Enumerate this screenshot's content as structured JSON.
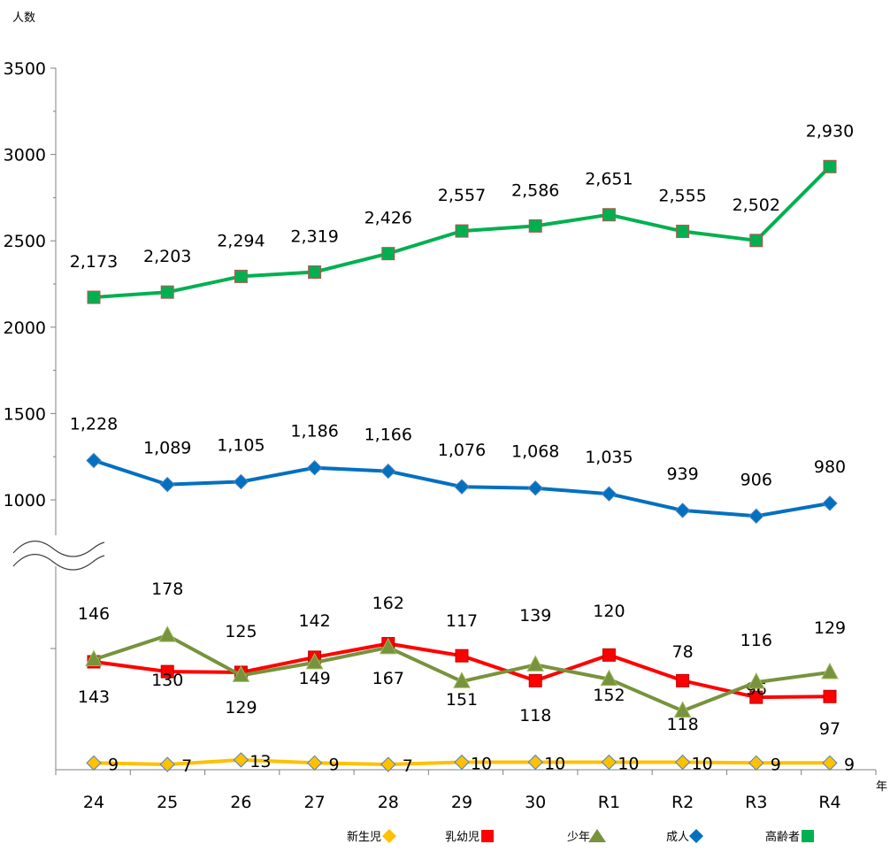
{
  "chart_data": {
    "type": "line",
    "ylabel": "人数",
    "xlabel": "年",
    "categories": [
      "24",
      "25",
      "26",
      "27",
      "28",
      "29",
      "30",
      "R1",
      "R2",
      "R3",
      "R4"
    ],
    "y_upper_ticks": [
      "3500",
      "3000",
      "2500",
      "2000",
      "1500",
      "1000"
    ],
    "axis_break": true,
    "upper_ylim": [
      1000,
      3500
    ],
    "legend_position": "bottom",
    "series": [
      {
        "name": "新生児",
        "color": "#FFC000",
        "marker": "diamond",
        "panel": "lower",
        "values": [
          9,
          7,
          13,
          9,
          7,
          10,
          10,
          10,
          10,
          9,
          9
        ],
        "labels": [
          "9",
          "7",
          "13",
          "9",
          "7",
          "10",
          "10",
          "10",
          "10",
          "9",
          "9"
        ]
      },
      {
        "name": "乳幼児",
        "color": "#FF0000",
        "marker": "square",
        "panel": "lower",
        "values": [
          143,
          130,
          129,
          149,
          167,
          151,
          118,
          152,
          118,
          96,
          97
        ],
        "labels": [
          "143",
          "130",
          "129",
          "149",
          "167",
          "151",
          "118",
          "152",
          "118",
          "96",
          "97"
        ]
      },
      {
        "name": "少年",
        "color": "#77933C",
        "marker": "triangle",
        "panel": "lower",
        "values": [
          146,
          178,
          125,
          142,
          162,
          117,
          139,
          120,
          78,
          116,
          129
        ],
        "labels": [
          "146",
          "178",
          "125",
          "142",
          "162",
          "117",
          "139",
          "120",
          "78",
          "116",
          "129"
        ]
      },
      {
        "name": "成人",
        "color": "#0070C0",
        "marker": "diamond",
        "panel": "upper",
        "values": [
          1228,
          1089,
          1105,
          1186,
          1166,
          1076,
          1068,
          1035,
          939,
          906,
          980
        ],
        "labels": [
          "1,228",
          "1,089",
          "1,105",
          "1,186",
          "1,166",
          "1,076",
          "1,068",
          "1,035",
          "939",
          "906",
          "980"
        ]
      },
      {
        "name": "高齢者",
        "color": "#00B050",
        "marker": "square",
        "panel": "upper",
        "values": [
          2173,
          2203,
          2294,
          2319,
          2426,
          2557,
          2586,
          2651,
          2555,
          2502,
          2930
        ],
        "labels": [
          "2,173",
          "2,203",
          "2,294",
          "2,319",
          "2,426",
          "2,557",
          "2,586",
          "2,651",
          "2,555",
          "2,502",
          "2,930"
        ]
      }
    ]
  }
}
